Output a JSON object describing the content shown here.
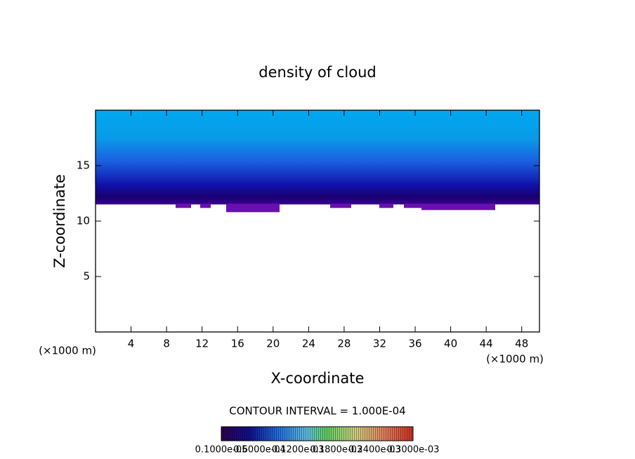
{
  "chart_data": {
    "type": "contour",
    "title": "density of cloud",
    "x_label": "X-coordinate",
    "y_label": "Z-coordinate",
    "x_unit": "(×1000 m)",
    "xlim": [
      0,
      50
    ],
    "xticks": [
      4,
      8,
      12,
      16,
      20,
      24,
      28,
      32,
      36,
      40,
      44,
      48
    ],
    "ylim": [
      0,
      20
    ],
    "yticks": [
      5,
      10,
      15
    ],
    "cloud_base": 11.5,
    "cloud_top": 20,
    "contour_interval": "CONTOUR INTERVAL = 1.000E-04",
    "colorbar_labels": [
      "0.1000e-05",
      "0.6000e-04",
      "0.1200e-03",
      "0.1800e-03",
      "0.2400e-03",
      "0.3000e-03"
    ]
  }
}
